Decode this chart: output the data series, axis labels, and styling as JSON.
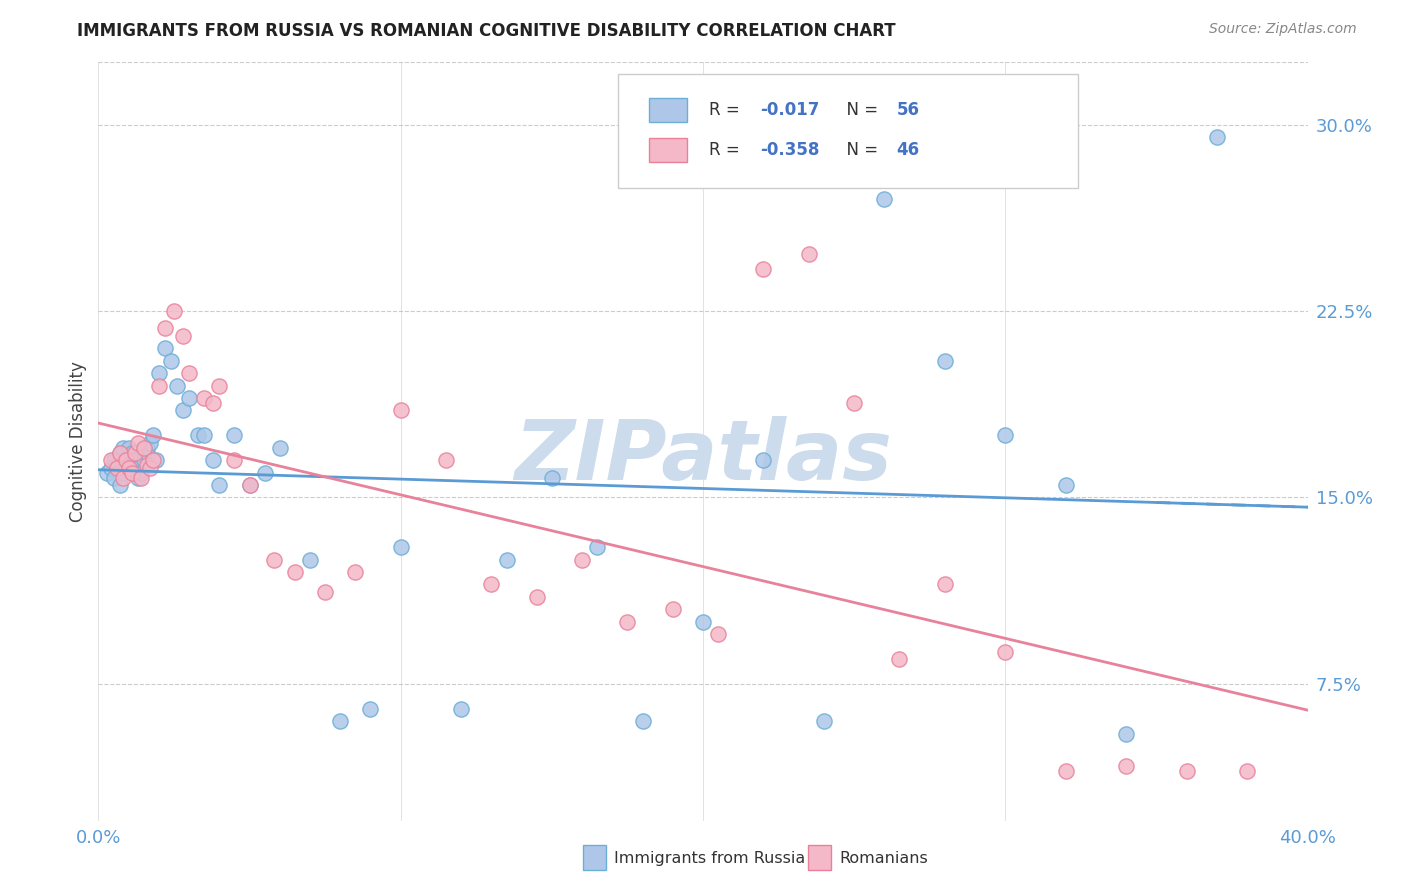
{
  "title": "IMMIGRANTS FROM RUSSIA VS ROMANIAN COGNITIVE DISABILITY CORRELATION CHART",
  "source": "Source: ZipAtlas.com",
  "ylabel": "Cognitive Disability",
  "ytick_values": [
    0.075,
    0.15,
    0.225,
    0.3
  ],
  "xlim": [
    0.0,
    0.4
  ],
  "ylim": [
    0.02,
    0.325
  ],
  "legend_R1": "-0.017",
  "legend_N1": "56",
  "legend_R2": "-0.358",
  "legend_N2": "46",
  "legend_label1": "Immigrants from Russia",
  "legend_label2": "Romanians",
  "russia_scatter_x": [
    0.003,
    0.004,
    0.005,
    0.005,
    0.006,
    0.007,
    0.007,
    0.008,
    0.008,
    0.009,
    0.01,
    0.01,
    0.011,
    0.012,
    0.012,
    0.013,
    0.013,
    0.014,
    0.015,
    0.016,
    0.016,
    0.017,
    0.018,
    0.019,
    0.02,
    0.022,
    0.024,
    0.026,
    0.028,
    0.03,
    0.033,
    0.035,
    0.038,
    0.04,
    0.045,
    0.05,
    0.055,
    0.06,
    0.07,
    0.08,
    0.09,
    0.1,
    0.12,
    0.135,
    0.15,
    0.165,
    0.18,
    0.2,
    0.22,
    0.24,
    0.26,
    0.28,
    0.3,
    0.32,
    0.34,
    0.37
  ],
  "russia_scatter_y": [
    0.16,
    0.162,
    0.165,
    0.158,
    0.163,
    0.168,
    0.155,
    0.17,
    0.16,
    0.165,
    0.162,
    0.17,
    0.168,
    0.16,
    0.165,
    0.162,
    0.158,
    0.16,
    0.165,
    0.168,
    0.17,
    0.172,
    0.175,
    0.165,
    0.2,
    0.21,
    0.205,
    0.195,
    0.185,
    0.19,
    0.175,
    0.175,
    0.165,
    0.155,
    0.175,
    0.155,
    0.16,
    0.17,
    0.125,
    0.06,
    0.065,
    0.13,
    0.065,
    0.125,
    0.158,
    0.13,
    0.06,
    0.1,
    0.165,
    0.06,
    0.27,
    0.205,
    0.175,
    0.155,
    0.055,
    0.295
  ],
  "romanian_scatter_x": [
    0.004,
    0.006,
    0.007,
    0.008,
    0.009,
    0.01,
    0.011,
    0.012,
    0.013,
    0.014,
    0.015,
    0.016,
    0.017,
    0.018,
    0.02,
    0.022,
    0.025,
    0.028,
    0.03,
    0.035,
    0.038,
    0.04,
    0.045,
    0.05,
    0.058,
    0.065,
    0.075,
    0.085,
    0.1,
    0.115,
    0.13,
    0.145,
    0.16,
    0.175,
    0.19,
    0.205,
    0.22,
    0.235,
    0.25,
    0.265,
    0.28,
    0.3,
    0.32,
    0.34,
    0.36,
    0.38
  ],
  "romanian_scatter_y": [
    0.165,
    0.162,
    0.168,
    0.158,
    0.165,
    0.162,
    0.16,
    0.168,
    0.172,
    0.158,
    0.17,
    0.163,
    0.162,
    0.165,
    0.195,
    0.218,
    0.225,
    0.215,
    0.2,
    0.19,
    0.188,
    0.195,
    0.165,
    0.155,
    0.125,
    0.12,
    0.112,
    0.12,
    0.185,
    0.165,
    0.115,
    0.11,
    0.125,
    0.1,
    0.105,
    0.095,
    0.242,
    0.248,
    0.188,
    0.085,
    0.115,
    0.088,
    0.04,
    0.042,
    0.04,
    0.04
  ],
  "russia_line_color": "#5b9bd5",
  "romanian_line_color": "#e8829a",
  "russia_dot_facecolor": "#aec7e8",
  "russia_dot_edgecolor": "#6baed6",
  "romanian_dot_facecolor": "#f4b8c8",
  "romanian_dot_edgecolor": "#e8829a",
  "background_color": "#ffffff",
  "grid_color": "#cccccc",
  "watermark_text": "ZIPatlas",
  "watermark_color": "#ccdcec",
  "title_fontsize": 12,
  "source_fontsize": 10,
  "axis_label_fontsize": 12,
  "tick_fontsize": 13
}
